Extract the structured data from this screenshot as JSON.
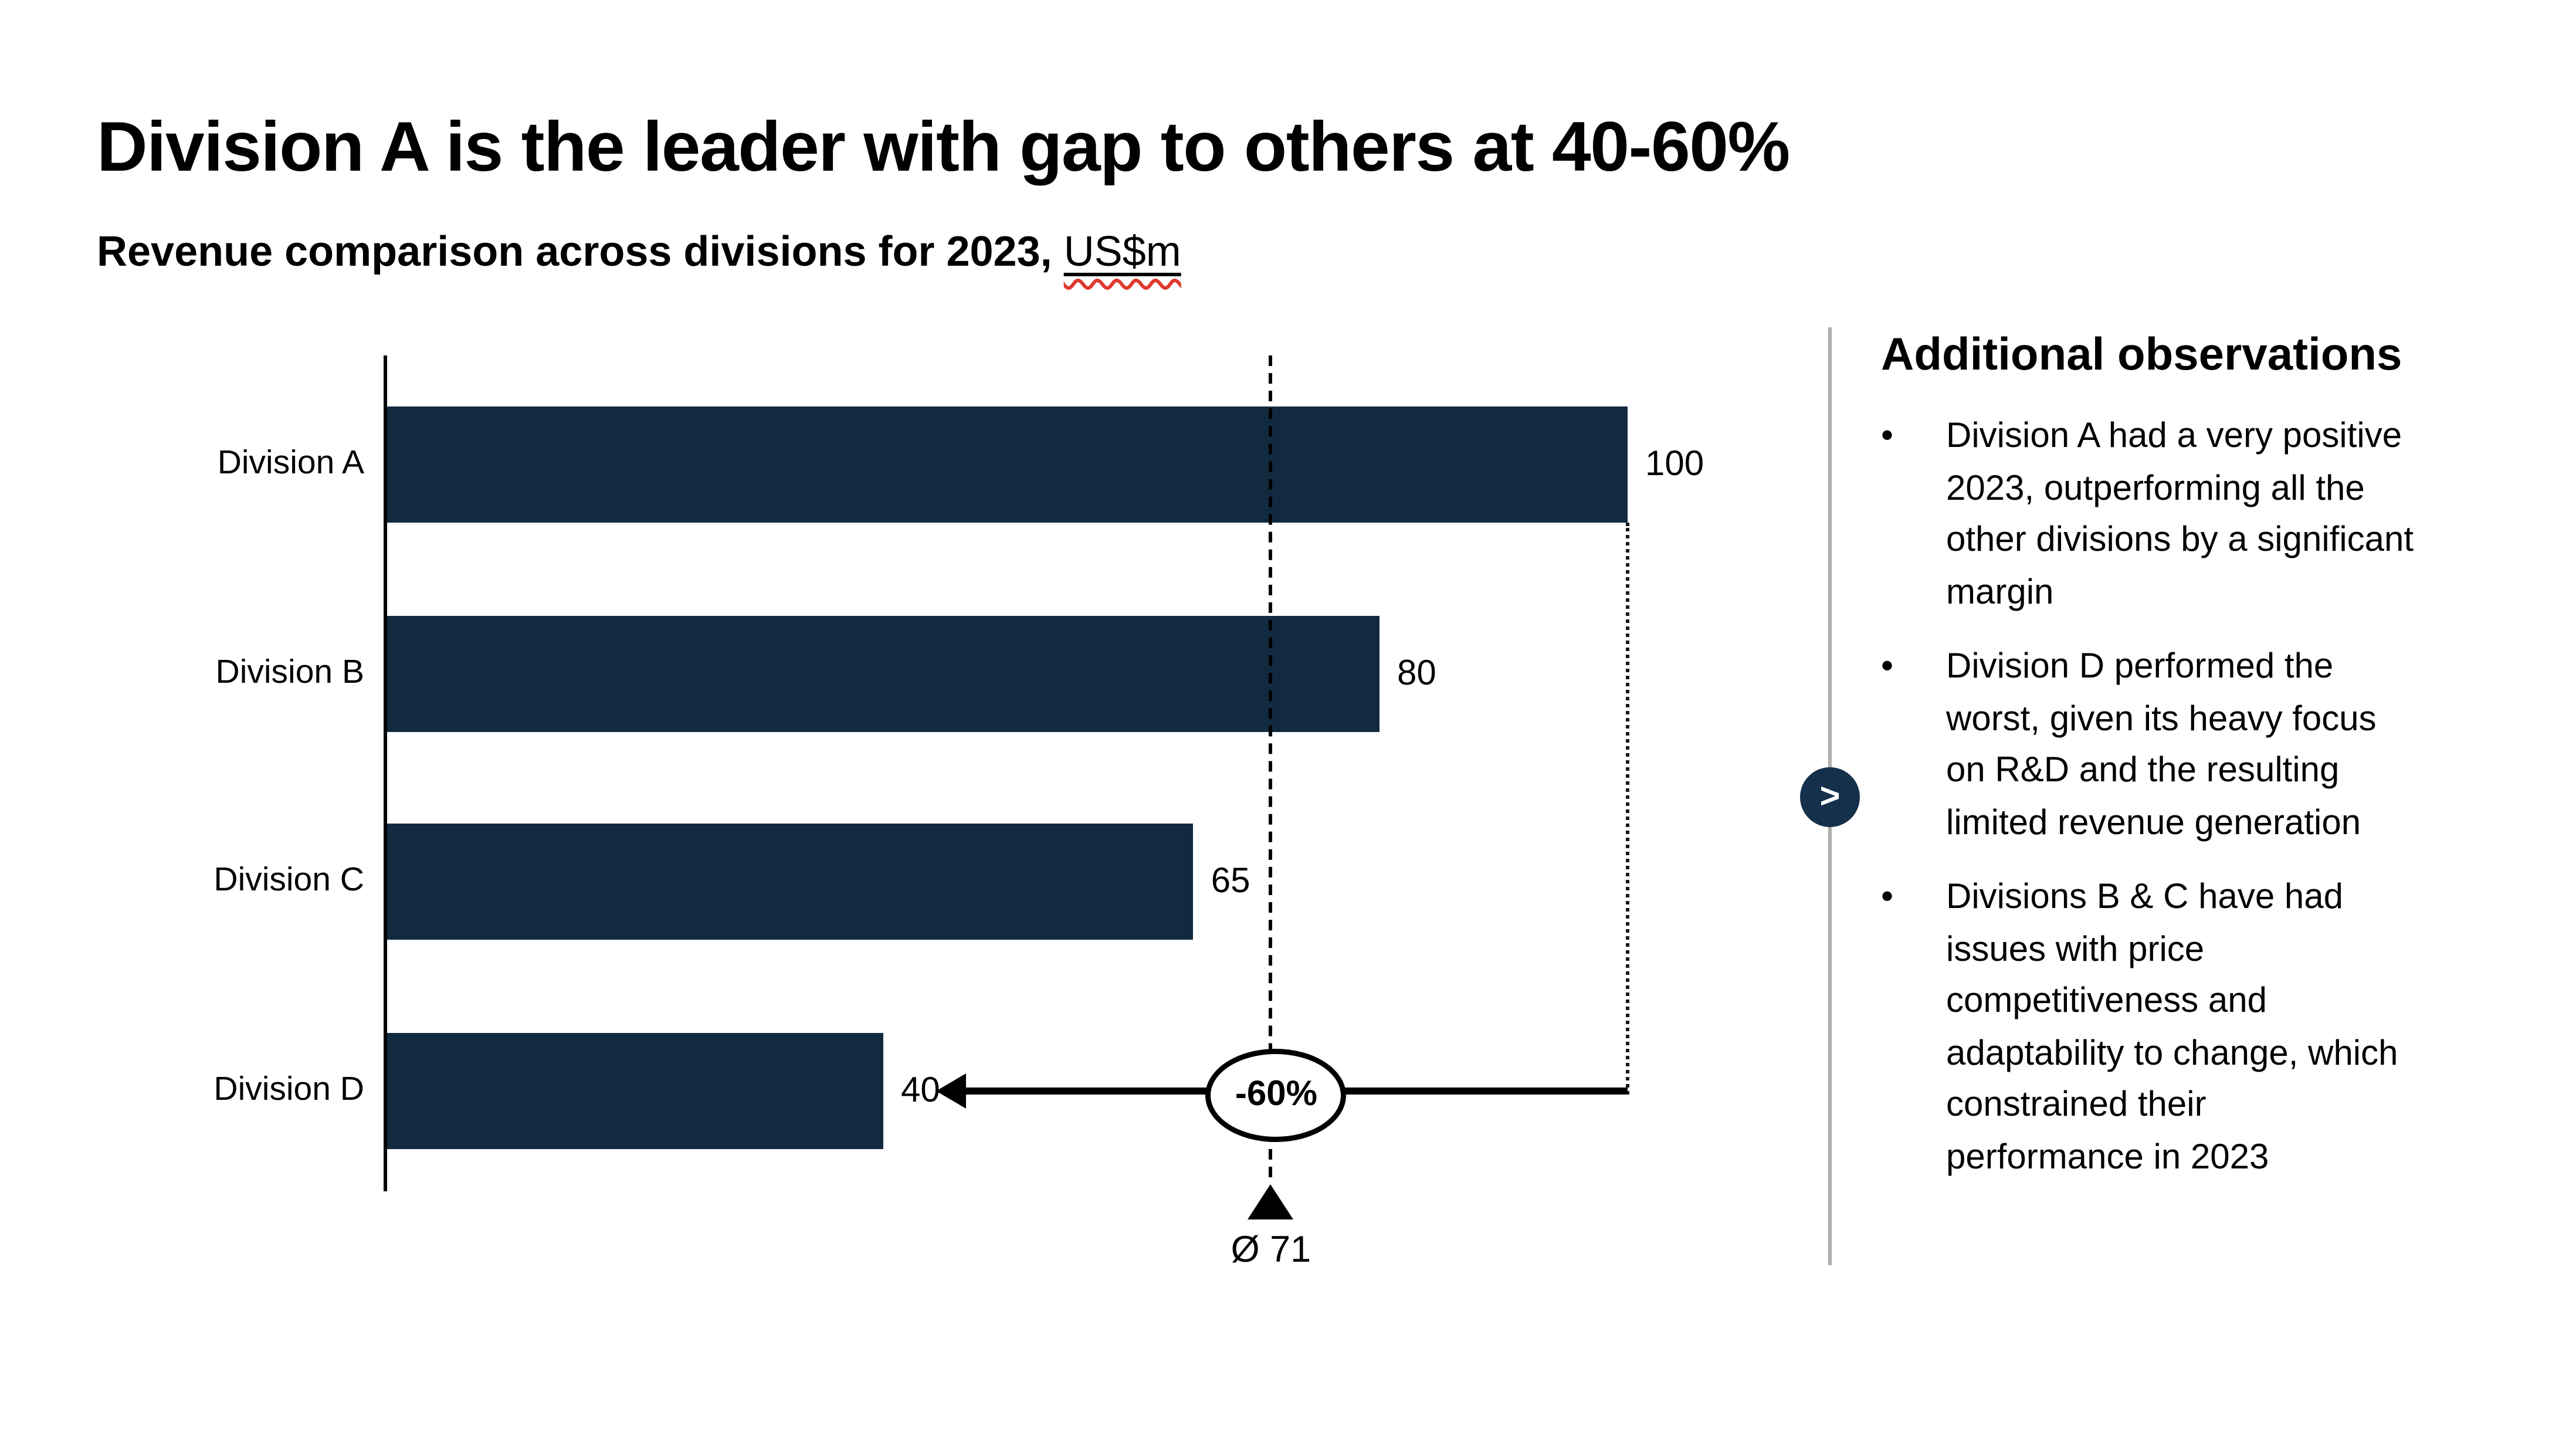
{
  "slide": {
    "title": "Division A is the leader with gap to others at 40-60%",
    "subtitle_prefix": "Revenue comparison across divisions for 2023,",
    "subtitle_unit": "US$m"
  },
  "chart_data": {
    "type": "bar",
    "orientation": "horizontal",
    "title": "Revenue comparison across divisions for 2023, US$m",
    "categories": [
      "Division A",
      "Division B",
      "Division C",
      "Division D"
    ],
    "values": [
      100,
      80,
      65,
      40
    ],
    "xlim": [
      0,
      100
    ],
    "grid": false,
    "legend": false,
    "value_labels": true,
    "average": 71.25,
    "average_label": "Ø 71",
    "delta_label": "-60%",
    "delta_from_value": 100,
    "delta_to_value": 40,
    "bar_color": "#112A40"
  },
  "observations": {
    "heading": "Additional observations",
    "chevron": ">",
    "bullets": [
      "Division A had a very positive\n2023, outperforming all the\nother divisions by a significant\nmargin",
      "Division D performed the\nworst, given its heavy focus\non R&D and the resulting\nlimited revenue generation",
      "Divisions B & C have had\nissues with price\ncompetitiveness and\nadaptability to change, which\nconstrained their\nperformance in 2023"
    ]
  },
  "colors": {
    "bar": "#112A40",
    "accent_circle": "#15304B",
    "divider": "#AFAFAF",
    "spellcheck_underline": "#E0392E"
  }
}
